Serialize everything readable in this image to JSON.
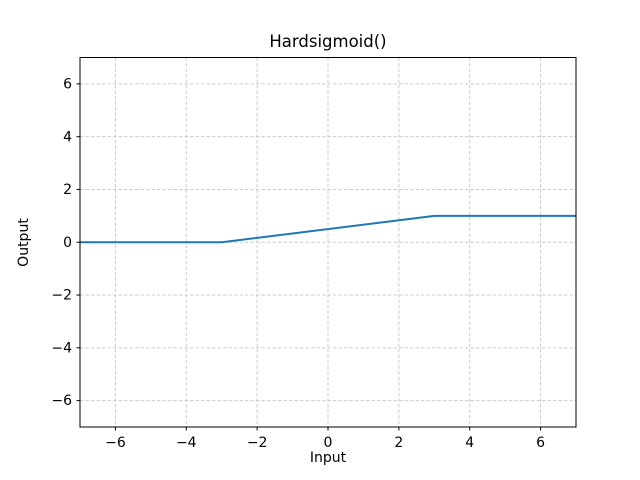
{
  "figure": {
    "title": "Hardsigmoid()",
    "xlabel": "Input",
    "ylabel": "Output"
  },
  "chart_data": {
    "type": "line",
    "title": "Hardsigmoid()",
    "xlabel": "Input",
    "ylabel": "Output",
    "xlim": [
      -7,
      7
    ],
    "ylim": [
      -7,
      7
    ],
    "xticks": [
      -6,
      -4,
      -2,
      0,
      2,
      4,
      6
    ],
    "yticks": [
      -6,
      -4,
      -2,
      0,
      2,
      4,
      6
    ],
    "grid": true,
    "grid_style": "dashed",
    "legend": "none",
    "series": [
      {
        "name": "Hardsigmoid",
        "color": "#1f77b4",
        "points": [
          [
            -7,
            0
          ],
          [
            -3,
            0
          ],
          [
            3,
            1
          ],
          [
            7,
            1
          ]
        ]
      }
    ],
    "colors": {
      "line": "#1f77b4",
      "grid": "#cccccc",
      "spine": "#000000",
      "tick": "#000000",
      "text": "#000000",
      "background": "#ffffff"
    }
  }
}
